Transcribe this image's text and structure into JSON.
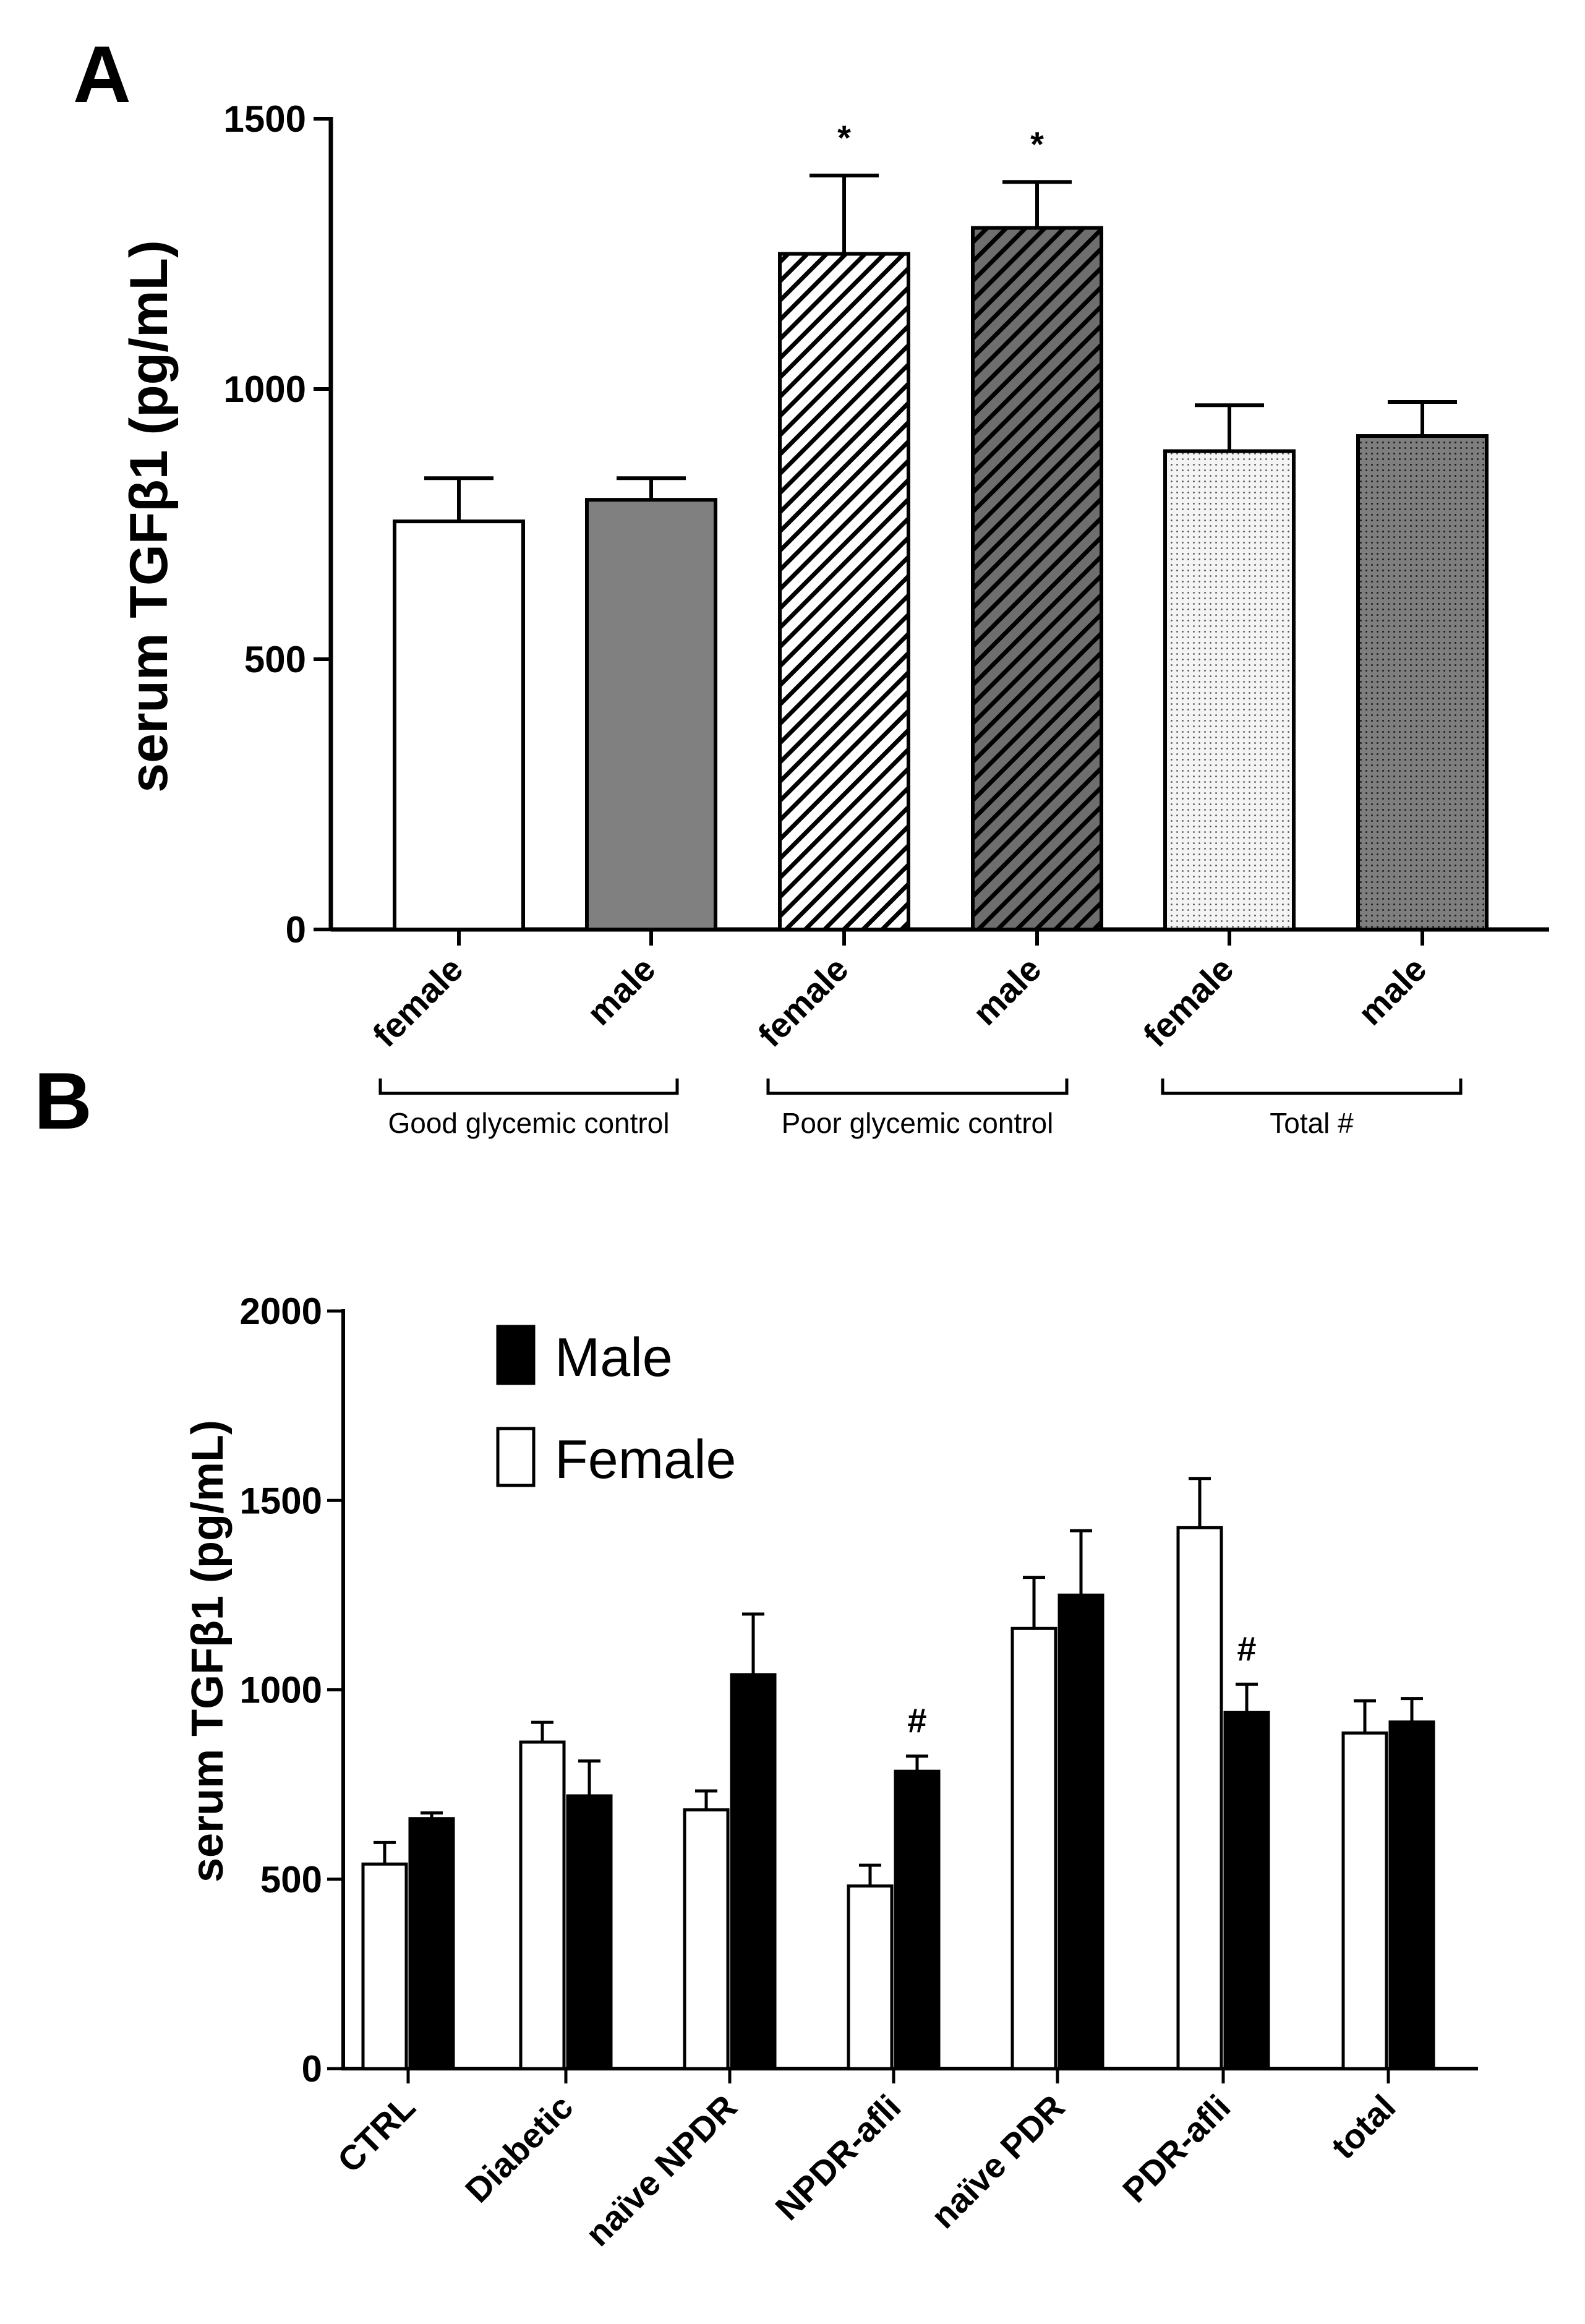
{
  "panels": {
    "a_letter": "A",
    "b_letter": "B"
  },
  "chart_data": [
    {
      "type": "bar",
      "panel": "A",
      "ylabel": "serum TGFβ1 (pg/mL)",
      "ylim": [
        0,
        1500
      ],
      "yticks": [
        0,
        500,
        1000,
        1500
      ],
      "categories": [
        "female",
        "male",
        "female",
        "male",
        "female",
        "male"
      ],
      "values": [
        755,
        795,
        1250,
        1298,
        885,
        913
      ],
      "errors": [
        80,
        40,
        145,
        85,
        85,
        63
      ],
      "annotations": [
        "",
        "",
        "*",
        "*",
        "",
        ""
      ],
      "fills": [
        "white",
        "gray",
        "hatch-white",
        "hatch-gray",
        "dots-light",
        "dots-dark"
      ],
      "groups": [
        {
          "label": "Good glycemic control",
          "members": [
            0,
            1
          ]
        },
        {
          "label": "Poor glycemic control",
          "members": [
            2,
            3
          ]
        },
        {
          "label": "Total #",
          "members": [
            4,
            5
          ]
        }
      ],
      "colors": {
        "gray": "#808080",
        "dark": "#666666",
        "light": "#ececec"
      }
    },
    {
      "type": "bar",
      "panel": "B",
      "ylabel": "serum TGFβ1 (pg/mL)",
      "ylim": [
        0,
        2000
      ],
      "yticks": [
        0,
        500,
        1000,
        1500,
        2000
      ],
      "categories": [
        "CTRL",
        "Diabetic",
        "naïve NPDR",
        "NPDR-afli",
        "naïve PDR",
        "PDR-afli",
        "total"
      ],
      "series": [
        {
          "name": "Female",
          "color": "#ffffff",
          "values": [
            540,
            862,
            683,
            482,
            1162,
            1428,
            886
          ],
          "errors": [
            57,
            52,
            50,
            55,
            135,
            130,
            85
          ]
        },
        {
          "name": "Male",
          "color": "#000000",
          "values": [
            660,
            720,
            1040,
            785,
            1250,
            940,
            915
          ],
          "errors": [
            15,
            92,
            160,
            40,
            170,
            75,
            62
          ]
        }
      ],
      "annotations": [
        {
          "category": "NPDR-afli",
          "series": "Male",
          "text": "#"
        },
        {
          "category": "PDR-afli",
          "series": "Male",
          "text": "#"
        }
      ],
      "legend": {
        "position": "top-left",
        "items": [
          "Male",
          "Female"
        ]
      }
    }
  ]
}
